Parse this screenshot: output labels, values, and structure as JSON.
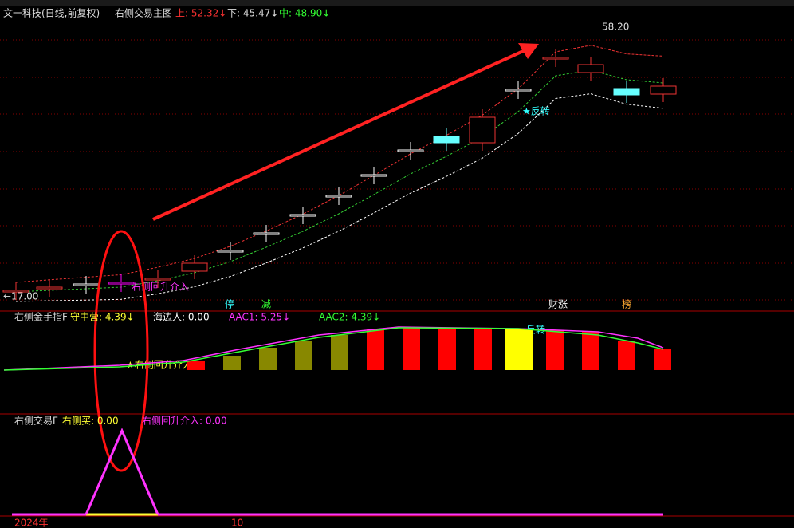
{
  "main": {
    "stock": "文一科技(日线,前复权)",
    "indicator": "右侧交易主图",
    "upper": "上: 52.32↓",
    "lower": "下: 45.47↓",
    "middle": "中: 48.90↓",
    "low_label": "←17.00",
    "high_label": "58.20",
    "entry_label": "右侧回升介入",
    "reverse_label": "★反转",
    "tags": [
      "停",
      "减",
      "财涨",
      "榜"
    ]
  },
  "panel2": {
    "name": "右侧金手指F",
    "items": [
      "守中营: 4.39↓",
      "海边人: 0.00",
      "AAC1: 5.25↓",
      "AAC2: 4.39↓"
    ],
    "entry_label": "★右侧回升介入",
    "reverse_label": "反转"
  },
  "panel3": {
    "name": "右侧交易F",
    "items": [
      "右侧买: 0.00",
      "右侧回升介入: 0.00"
    ]
  },
  "axis": {
    "year": "2024年",
    "month": "10"
  }
}
